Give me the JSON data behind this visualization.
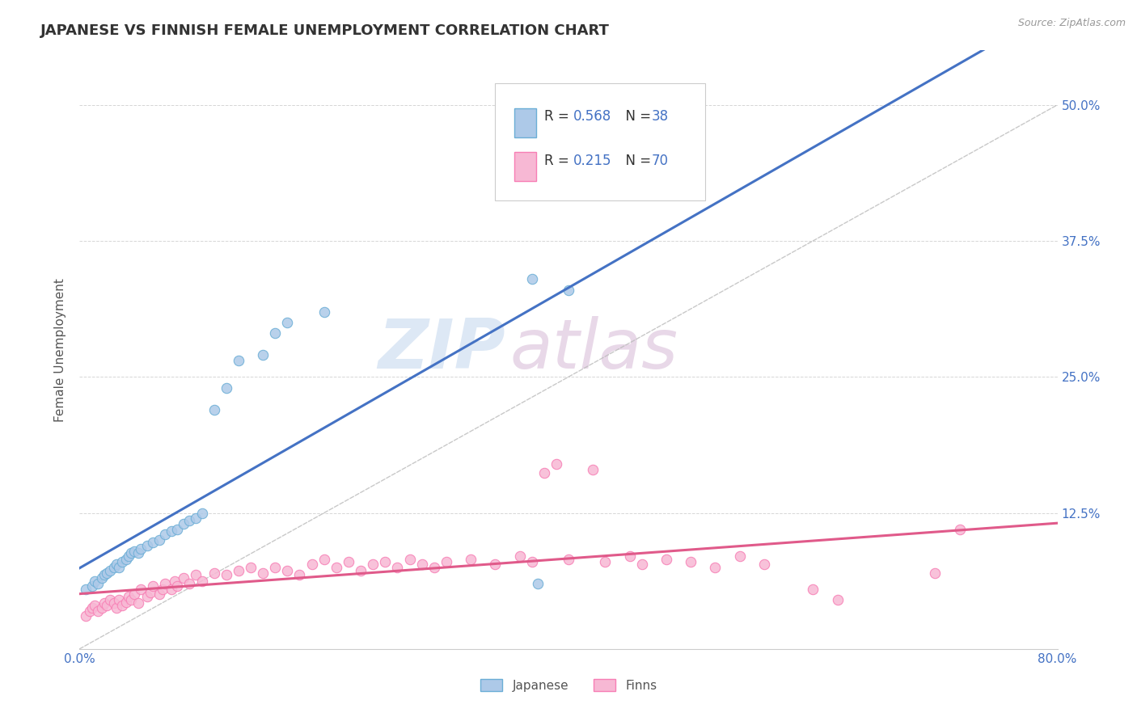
{
  "title": "JAPANESE VS FINNISH FEMALE UNEMPLOYMENT CORRELATION CHART",
  "source": "Source: ZipAtlas.com",
  "ylabel": "Female Unemployment",
  "xlim": [
    0.0,
    0.8
  ],
  "ylim": [
    0.0,
    0.55
  ],
  "xticks": [
    0.0,
    0.2,
    0.4,
    0.6,
    0.8
  ],
  "xticklabels": [
    "0.0%",
    "",
    "",
    "",
    "80.0%"
  ],
  "yticks_right": [
    0.0,
    0.125,
    0.25,
    0.375,
    0.5
  ],
  "yticklabels_right": [
    "",
    "12.5%",
    "25.0%",
    "37.5%",
    "50.0%"
  ],
  "legend_label_japanese": "Japanese",
  "legend_label_finns": "Finns",
  "japanese_color": "#6baed6",
  "japanese_color_light": "#adc9e8",
  "finns_color": "#f77fb5",
  "finns_color_light": "#f7b8d4",
  "watermark_zip": "ZIP",
  "watermark_atlas": "atlas",
  "diag_line_color": "#bbbbbb",
  "reg_japanese_color": "#4472c4",
  "reg_finns_color": "#e05a8a",
  "tick_color": "#4472c4",
  "japanese_points": [
    [
      0.005,
      0.055
    ],
    [
      0.01,
      0.058
    ],
    [
      0.012,
      0.062
    ],
    [
      0.015,
      0.06
    ],
    [
      0.018,
      0.065
    ],
    [
      0.02,
      0.068
    ],
    [
      0.022,
      0.07
    ],
    [
      0.025,
      0.072
    ],
    [
      0.028,
      0.075
    ],
    [
      0.03,
      0.078
    ],
    [
      0.032,
      0.075
    ],
    [
      0.035,
      0.08
    ],
    [
      0.038,
      0.082
    ],
    [
      0.04,
      0.085
    ],
    [
      0.042,
      0.088
    ],
    [
      0.045,
      0.09
    ],
    [
      0.048,
      0.088
    ],
    [
      0.05,
      0.092
    ],
    [
      0.055,
      0.095
    ],
    [
      0.06,
      0.098
    ],
    [
      0.065,
      0.1
    ],
    [
      0.07,
      0.105
    ],
    [
      0.075,
      0.108
    ],
    [
      0.08,
      0.11
    ],
    [
      0.085,
      0.115
    ],
    [
      0.09,
      0.118
    ],
    [
      0.095,
      0.12
    ],
    [
      0.1,
      0.125
    ],
    [
      0.11,
      0.22
    ],
    [
      0.12,
      0.24
    ],
    [
      0.13,
      0.265
    ],
    [
      0.15,
      0.27
    ],
    [
      0.16,
      0.29
    ],
    [
      0.17,
      0.3
    ],
    [
      0.2,
      0.31
    ],
    [
      0.37,
      0.34
    ],
    [
      0.375,
      0.06
    ],
    [
      0.4,
      0.33
    ]
  ],
  "finns_points": [
    [
      0.005,
      0.03
    ],
    [
      0.008,
      0.035
    ],
    [
      0.01,
      0.038
    ],
    [
      0.012,
      0.04
    ],
    [
      0.015,
      0.035
    ],
    [
      0.018,
      0.038
    ],
    [
      0.02,
      0.042
    ],
    [
      0.022,
      0.04
    ],
    [
      0.025,
      0.045
    ],
    [
      0.028,
      0.042
    ],
    [
      0.03,
      0.038
    ],
    [
      0.032,
      0.045
    ],
    [
      0.035,
      0.04
    ],
    [
      0.038,
      0.043
    ],
    [
      0.04,
      0.048
    ],
    [
      0.042,
      0.045
    ],
    [
      0.045,
      0.05
    ],
    [
      0.048,
      0.042
    ],
    [
      0.05,
      0.055
    ],
    [
      0.055,
      0.048
    ],
    [
      0.058,
      0.052
    ],
    [
      0.06,
      0.058
    ],
    [
      0.065,
      0.05
    ],
    [
      0.068,
      0.055
    ],
    [
      0.07,
      0.06
    ],
    [
      0.075,
      0.055
    ],
    [
      0.078,
      0.062
    ],
    [
      0.08,
      0.058
    ],
    [
      0.085,
      0.065
    ],
    [
      0.09,
      0.06
    ],
    [
      0.095,
      0.068
    ],
    [
      0.1,
      0.062
    ],
    [
      0.11,
      0.07
    ],
    [
      0.12,
      0.068
    ],
    [
      0.13,
      0.072
    ],
    [
      0.14,
      0.075
    ],
    [
      0.15,
      0.07
    ],
    [
      0.16,
      0.075
    ],
    [
      0.17,
      0.072
    ],
    [
      0.18,
      0.068
    ],
    [
      0.19,
      0.078
    ],
    [
      0.2,
      0.082
    ],
    [
      0.21,
      0.075
    ],
    [
      0.22,
      0.08
    ],
    [
      0.23,
      0.072
    ],
    [
      0.24,
      0.078
    ],
    [
      0.25,
      0.08
    ],
    [
      0.26,
      0.075
    ],
    [
      0.27,
      0.082
    ],
    [
      0.28,
      0.078
    ],
    [
      0.29,
      0.075
    ],
    [
      0.3,
      0.08
    ],
    [
      0.32,
      0.082
    ],
    [
      0.34,
      0.078
    ],
    [
      0.36,
      0.085
    ],
    [
      0.37,
      0.08
    ],
    [
      0.38,
      0.162
    ],
    [
      0.39,
      0.17
    ],
    [
      0.4,
      0.082
    ],
    [
      0.42,
      0.165
    ],
    [
      0.43,
      0.08
    ],
    [
      0.45,
      0.085
    ],
    [
      0.46,
      0.078
    ],
    [
      0.48,
      0.082
    ],
    [
      0.5,
      0.08
    ],
    [
      0.52,
      0.075
    ],
    [
      0.54,
      0.085
    ],
    [
      0.56,
      0.078
    ],
    [
      0.6,
      0.055
    ],
    [
      0.62,
      0.045
    ],
    [
      0.7,
      0.07
    ],
    [
      0.72,
      0.11
    ]
  ]
}
